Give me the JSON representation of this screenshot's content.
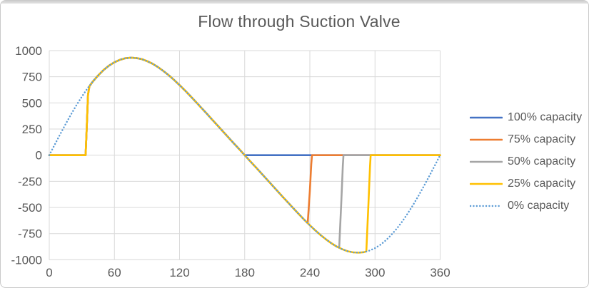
{
  "chart_title": "Flow through Suction Valve",
  "chart_data": {
    "type": "line",
    "title": "Flow through Suction Valve",
    "xlabel": "",
    "ylabel": "",
    "xlim": [
      0,
      360
    ],
    "ylim": [
      -1000,
      1000
    ],
    "x_ticks": [
      0,
      60,
      120,
      180,
      240,
      300,
      360
    ],
    "y_ticks": [
      1000,
      750,
      500,
      250,
      0,
      -250,
      -500,
      -750,
      -1000
    ],
    "grid": true,
    "grid_color": "#d9d9d9",
    "axis_label_color": "#595959",
    "legend_position": "right",
    "series": [
      {
        "name": "100% capacity",
        "color": "#4472C4",
        "line_style": "solid",
        "points": [
          [
            0,
            0
          ],
          [
            33.5,
            0
          ],
          [
            34.6,
            280
          ],
          [
            35.7,
            580
          ],
          [
            37,
            660
          ],
          [
            40,
            703
          ],
          [
            45,
            762
          ],
          [
            50,
            814
          ],
          [
            55,
            856
          ],
          [
            60,
            889
          ],
          [
            65,
            912
          ],
          [
            70,
            927
          ],
          [
            75,
            932
          ],
          [
            80,
            929
          ],
          [
            85,
            919
          ],
          [
            90,
            900
          ],
          [
            95,
            875
          ],
          [
            100,
            843
          ],
          [
            105,
            806
          ],
          [
            110,
            765
          ],
          [
            115,
            719
          ],
          [
            120,
            670
          ],
          [
            125,
            619
          ],
          [
            130,
            565
          ],
          [
            135,
            510
          ],
          [
            140,
            454
          ],
          [
            145,
            398
          ],
          [
            150,
            341
          ],
          [
            155,
            284
          ],
          [
            160,
            227
          ],
          [
            165,
            170
          ],
          [
            170,
            113
          ],
          [
            175,
            57
          ],
          [
            180,
            0
          ],
          [
            360,
            0
          ]
        ]
      },
      {
        "name": "75% capacity",
        "color": "#ED7D31",
        "line_style": "solid",
        "points": [
          [
            0,
            0
          ],
          [
            33.5,
            0
          ],
          [
            34.6,
            280
          ],
          [
            35.7,
            580
          ],
          [
            37,
            660
          ],
          [
            40,
            703
          ],
          [
            45,
            762
          ],
          [
            50,
            814
          ],
          [
            55,
            856
          ],
          [
            60,
            889
          ],
          [
            65,
            912
          ],
          [
            70,
            927
          ],
          [
            75,
            932
          ],
          [
            80,
            929
          ],
          [
            85,
            919
          ],
          [
            90,
            900
          ],
          [
            95,
            875
          ],
          [
            100,
            843
          ],
          [
            105,
            806
          ],
          [
            110,
            765
          ],
          [
            115,
            719
          ],
          [
            120,
            670
          ],
          [
            125,
            619
          ],
          [
            130,
            565
          ],
          [
            135,
            510
          ],
          [
            140,
            454
          ],
          [
            145,
            398
          ],
          [
            150,
            341
          ],
          [
            155,
            284
          ],
          [
            160,
            227
          ],
          [
            165,
            170
          ],
          [
            170,
            113
          ],
          [
            175,
            57
          ],
          [
            180,
            0
          ],
          [
            185,
            -57
          ],
          [
            190,
            -113
          ],
          [
            195,
            -170
          ],
          [
            200,
            -227
          ],
          [
            205,
            -284
          ],
          [
            210,
            -341
          ],
          [
            215,
            -398
          ],
          [
            220,
            -454
          ],
          [
            225,
            -510
          ],
          [
            230,
            -565
          ],
          [
            235,
            -619
          ],
          [
            238,
            -650
          ],
          [
            240,
            -340
          ],
          [
            241.3,
            -85
          ],
          [
            242,
            0
          ],
          [
            360,
            0
          ]
        ]
      },
      {
        "name": "50% capacity",
        "color": "#A5A5A5",
        "line_style": "solid",
        "points": [
          [
            0,
            0
          ],
          [
            33.5,
            0
          ],
          [
            34.6,
            280
          ],
          [
            35.7,
            580
          ],
          [
            37,
            660
          ],
          [
            40,
            703
          ],
          [
            45,
            762
          ],
          [
            50,
            814
          ],
          [
            55,
            856
          ],
          [
            60,
            889
          ],
          [
            65,
            912
          ],
          [
            70,
            927
          ],
          [
            75,
            932
          ],
          [
            80,
            929
          ],
          [
            85,
            919
          ],
          [
            90,
            900
          ],
          [
            95,
            875
          ],
          [
            100,
            843
          ],
          [
            105,
            806
          ],
          [
            110,
            765
          ],
          [
            115,
            719
          ],
          [
            120,
            670
          ],
          [
            125,
            619
          ],
          [
            130,
            565
          ],
          [
            135,
            510
          ],
          [
            140,
            454
          ],
          [
            145,
            398
          ],
          [
            150,
            341
          ],
          [
            155,
            284
          ],
          [
            160,
            227
          ],
          [
            165,
            170
          ],
          [
            170,
            113
          ],
          [
            175,
            57
          ],
          [
            180,
            0
          ],
          [
            185,
            -57
          ],
          [
            190,
            -113
          ],
          [
            195,
            -170
          ],
          [
            200,
            -227
          ],
          [
            205,
            -284
          ],
          [
            210,
            -341
          ],
          [
            215,
            -398
          ],
          [
            220,
            -454
          ],
          [
            225,
            -510
          ],
          [
            230,
            -565
          ],
          [
            235,
            -619
          ],
          [
            240,
            -670
          ],
          [
            245,
            -719
          ],
          [
            250,
            -765
          ],
          [
            255,
            -806
          ],
          [
            260,
            -843
          ],
          [
            265,
            -875
          ],
          [
            267,
            -884
          ],
          [
            269,
            -440
          ],
          [
            270.4,
            -100
          ],
          [
            271,
            0
          ],
          [
            360,
            0
          ]
        ]
      },
      {
        "name": "25% capacity",
        "color": "#FFC000",
        "line_style": "solid",
        "points": [
          [
            0,
            0
          ],
          [
            33.5,
            0
          ],
          [
            34.6,
            280
          ],
          [
            35.7,
            580
          ],
          [
            37,
            660
          ],
          [
            40,
            703
          ],
          [
            45,
            762
          ],
          [
            50,
            814
          ],
          [
            55,
            856
          ],
          [
            60,
            889
          ],
          [
            65,
            912
          ],
          [
            70,
            927
          ],
          [
            75,
            932
          ],
          [
            80,
            929
          ],
          [
            85,
            919
          ],
          [
            90,
            900
          ],
          [
            95,
            875
          ],
          [
            100,
            843
          ],
          [
            105,
            806
          ],
          [
            110,
            765
          ],
          [
            115,
            719
          ],
          [
            120,
            670
          ],
          [
            125,
            619
          ],
          [
            130,
            565
          ],
          [
            135,
            510
          ],
          [
            140,
            454
          ],
          [
            145,
            398
          ],
          [
            150,
            341
          ],
          [
            155,
            284
          ],
          [
            160,
            227
          ],
          [
            165,
            170
          ],
          [
            170,
            113
          ],
          [
            175,
            57
          ],
          [
            180,
            0
          ],
          [
            185,
            -57
          ],
          [
            190,
            -113
          ],
          [
            195,
            -170
          ],
          [
            200,
            -227
          ],
          [
            205,
            -284
          ],
          [
            210,
            -341
          ],
          [
            215,
            -398
          ],
          [
            220,
            -454
          ],
          [
            225,
            -510
          ],
          [
            230,
            -565
          ],
          [
            235,
            -619
          ],
          [
            240,
            -670
          ],
          [
            245,
            -719
          ],
          [
            250,
            -765
          ],
          [
            255,
            -806
          ],
          [
            260,
            -843
          ],
          [
            265,
            -875
          ],
          [
            270,
            -900
          ],
          [
            275,
            -919
          ],
          [
            280,
            -929
          ],
          [
            285,
            -932
          ],
          [
            290,
            -927
          ],
          [
            292,
            -920
          ],
          [
            294,
            -460
          ],
          [
            295.4,
            -105
          ],
          [
            296,
            0
          ],
          [
            360,
            0
          ]
        ]
      },
      {
        "name": "0% capacity",
        "color": "#5B9BD5",
        "line_style": "dotted",
        "points": [
          [
            0,
            0
          ],
          [
            5,
            100
          ],
          [
            10,
            199
          ],
          [
            15,
            296
          ],
          [
            20,
            389
          ],
          [
            25,
            477
          ],
          [
            30,
            559
          ],
          [
            35,
            635
          ],
          [
            40,
            703
          ],
          [
            45,
            762
          ],
          [
            50,
            814
          ],
          [
            55,
            856
          ],
          [
            60,
            889
          ],
          [
            65,
            912
          ],
          [
            70,
            927
          ],
          [
            75,
            932
          ],
          [
            80,
            929
          ],
          [
            85,
            919
          ],
          [
            90,
            900
          ],
          [
            95,
            875
          ],
          [
            100,
            843
          ],
          [
            105,
            806
          ],
          [
            110,
            765
          ],
          [
            115,
            719
          ],
          [
            120,
            670
          ],
          [
            125,
            619
          ],
          [
            130,
            565
          ],
          [
            135,
            510
          ],
          [
            140,
            454
          ],
          [
            145,
            398
          ],
          [
            150,
            341
          ],
          [
            155,
            284
          ],
          [
            160,
            227
          ],
          [
            165,
            170
          ],
          [
            170,
            113
          ],
          [
            175,
            57
          ],
          [
            180,
            0
          ],
          [
            185,
            -57
          ],
          [
            190,
            -113
          ],
          [
            195,
            -170
          ],
          [
            200,
            -227
          ],
          [
            205,
            -284
          ],
          [
            210,
            -341
          ],
          [
            215,
            -398
          ],
          [
            220,
            -454
          ],
          [
            225,
            -510
          ],
          [
            230,
            -565
          ],
          [
            235,
            -619
          ],
          [
            240,
            -670
          ],
          [
            245,
            -719
          ],
          [
            250,
            -765
          ],
          [
            255,
            -806
          ],
          [
            260,
            -843
          ],
          [
            265,
            -875
          ],
          [
            270,
            -900
          ],
          [
            275,
            -919
          ],
          [
            280,
            -929
          ],
          [
            285,
            -932
          ],
          [
            290,
            -927
          ],
          [
            295,
            -912
          ],
          [
            300,
            -889
          ],
          [
            305,
            -856
          ],
          [
            310,
            -814
          ],
          [
            315,
            -762
          ],
          [
            320,
            -703
          ],
          [
            325,
            -635
          ],
          [
            330,
            -559
          ],
          [
            335,
            -477
          ],
          [
            340,
            -389
          ],
          [
            345,
            -296
          ],
          [
            350,
            -199
          ],
          [
            355,
            -100
          ],
          [
            360,
            0
          ]
        ]
      }
    ]
  }
}
